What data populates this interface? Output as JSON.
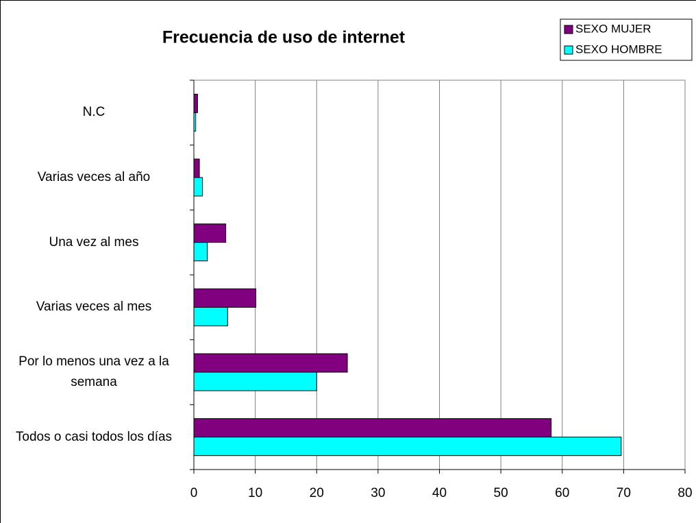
{
  "chart_data": {
    "type": "barh",
    "title": "Frecuencia de uso de internet",
    "categories": [
      "N.C",
      "Varias veces al año",
      "Una vez al mes",
      "Varias veces al mes",
      "Por lo menos una vez a la semana",
      "Todos o casi todos los días"
    ],
    "series": [
      {
        "name": "SEXO MUJER",
        "color": "#800080",
        "values": [
          0.6,
          0.9,
          5.2,
          10.1,
          25.0,
          58.2
        ]
      },
      {
        "name": "SEXO HOMBRE",
        "color": "#00ffff",
        "values": [
          0.3,
          1.4,
          2.2,
          5.5,
          20.0,
          69.6
        ]
      }
    ],
    "xlim": [
      0,
      80
    ],
    "xticks": [
      0,
      10,
      20,
      30,
      40,
      50,
      60,
      70,
      80
    ],
    "grid": true,
    "legend": "top-right"
  }
}
